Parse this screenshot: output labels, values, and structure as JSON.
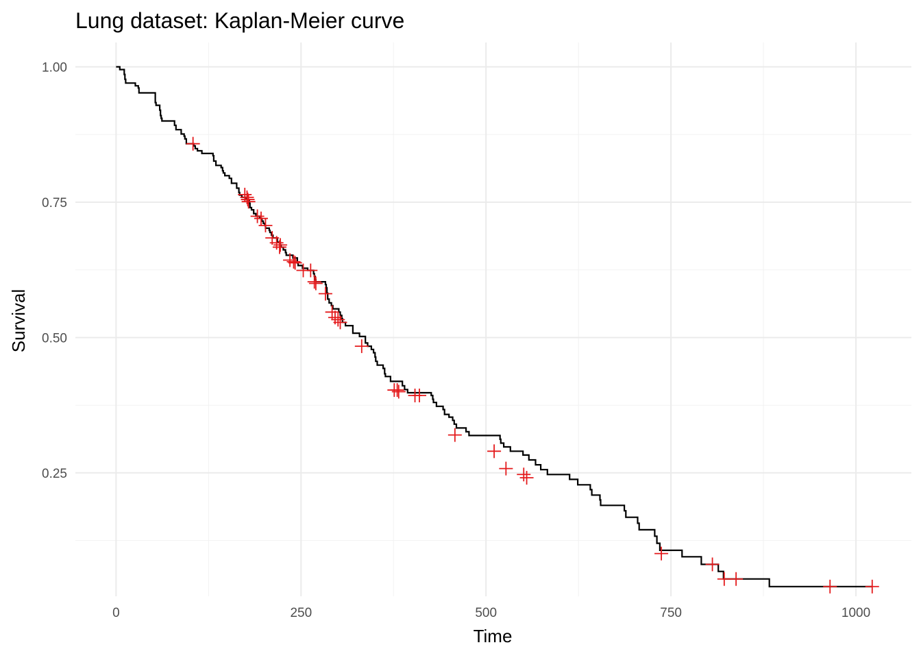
{
  "chart_data": {
    "type": "line",
    "title": "Lung dataset: Kaplan-Meier curve",
    "xlabel": "Time",
    "ylabel": "Survival",
    "xlim": [
      -55,
      1075
    ],
    "ylim": [
      0.022,
      1.045
    ],
    "x_ticks": [
      0,
      250,
      500,
      750,
      1000
    ],
    "x_tick_labels": [
      "0",
      "250",
      "500",
      "750",
      "1000"
    ],
    "y_ticks": [
      0.25,
      0.5,
      0.75,
      1.0
    ],
    "y_tick_labels": [
      "0.25",
      "0.50",
      "0.75",
      "1.00"
    ],
    "grid": true,
    "legend": "none",
    "colors": {
      "curve": "#000000",
      "censor": "#e41a1c"
    },
    "curve": [
      [
        0,
        1.0
      ],
      [
        5,
        0.995
      ],
      [
        11,
        0.986
      ],
      [
        12,
        0.977
      ],
      [
        13,
        0.97
      ],
      [
        26,
        0.965
      ],
      [
        30,
        0.961
      ],
      [
        31,
        0.952
      ],
      [
        53,
        0.934
      ],
      [
        54,
        0.929
      ],
      [
        59,
        0.92
      ],
      [
        60,
        0.91
      ],
      [
        61,
        0.905
      ],
      [
        62,
        0.9
      ],
      [
        79,
        0.892
      ],
      [
        81,
        0.884
      ],
      [
        88,
        0.876
      ],
      [
        92,
        0.872
      ],
      [
        93,
        0.867
      ],
      [
        95,
        0.858
      ],
      [
        105,
        0.854
      ],
      [
        107,
        0.849
      ],
      [
        110,
        0.845
      ],
      [
        116,
        0.84
      ],
      [
        118,
        0.84
      ],
      [
        131,
        0.836
      ],
      [
        132,
        0.826
      ],
      [
        135,
        0.818
      ],
      [
        142,
        0.814
      ],
      [
        144,
        0.808
      ],
      [
        145,
        0.804
      ],
      [
        147,
        0.799
      ],
      [
        153,
        0.794
      ],
      [
        156,
        0.785
      ],
      [
        163,
        0.776
      ],
      [
        166,
        0.768
      ],
      [
        167,
        0.763
      ],
      [
        170,
        0.759
      ],
      [
        176,
        0.755
      ],
      [
        180,
        0.748
      ],
      [
        181,
        0.74
      ],
      [
        183,
        0.736
      ],
      [
        186,
        0.729
      ],
      [
        189,
        0.724
      ],
      [
        194,
        0.72
      ],
      [
        197,
        0.715
      ],
      [
        199,
        0.711
      ],
      [
        201,
        0.707
      ],
      [
        202,
        0.702
      ],
      [
        207,
        0.698
      ],
      [
        208,
        0.694
      ],
      [
        210,
        0.689
      ],
      [
        212,
        0.684
      ],
      [
        218,
        0.676
      ],
      [
        222,
        0.671
      ],
      [
        223,
        0.667
      ],
      [
        226,
        0.662
      ],
      [
        229,
        0.657
      ],
      [
        230,
        0.652
      ],
      [
        239,
        0.647
      ],
      [
        245,
        0.638
      ],
      [
        246,
        0.633
      ],
      [
        252,
        0.628
      ],
      [
        259,
        0.624
      ],
      [
        267,
        0.618
      ],
      [
        268,
        0.613
      ],
      [
        269,
        0.607
      ],
      [
        270,
        0.603
      ],
      [
        283,
        0.598
      ],
      [
        284,
        0.592
      ],
      [
        285,
        0.582
      ],
      [
        286,
        0.571
      ],
      [
        288,
        0.564
      ],
      [
        291,
        0.559
      ],
      [
        293,
        0.553
      ],
      [
        301,
        0.547
      ],
      [
        303,
        0.541
      ],
      [
        305,
        0.535
      ],
      [
        306,
        0.528
      ],
      [
        310,
        0.522
      ],
      [
        320,
        0.508
      ],
      [
        329,
        0.502
      ],
      [
        337,
        0.49
      ],
      [
        340,
        0.484
      ],
      [
        345,
        0.478
      ],
      [
        348,
        0.472
      ],
      [
        350,
        0.464
      ],
      [
        351,
        0.456
      ],
      [
        353,
        0.449
      ],
      [
        361,
        0.443
      ],
      [
        363,
        0.433
      ],
      [
        364,
        0.428
      ],
      [
        371,
        0.419
      ],
      [
        387,
        0.411
      ],
      [
        390,
        0.404
      ],
      [
        394,
        0.398
      ],
      [
        426,
        0.393
      ],
      [
        428,
        0.386
      ],
      [
        429,
        0.38
      ],
      [
        433,
        0.373
      ],
      [
        442,
        0.367
      ],
      [
        444,
        0.358
      ],
      [
        450,
        0.353
      ],
      [
        455,
        0.347
      ],
      [
        457,
        0.34
      ],
      [
        460,
        0.333
      ],
      [
        473,
        0.326
      ],
      [
        477,
        0.319
      ],
      [
        519,
        0.312
      ],
      [
        520,
        0.305
      ],
      [
        524,
        0.298
      ],
      [
        533,
        0.29
      ],
      [
        550,
        0.283
      ],
      [
        558,
        0.274
      ],
      [
        567,
        0.265
      ],
      [
        574,
        0.256
      ],
      [
        583,
        0.247
      ],
      [
        613,
        0.238
      ],
      [
        624,
        0.228
      ],
      [
        641,
        0.219
      ],
      [
        643,
        0.209
      ],
      [
        654,
        0.2
      ],
      [
        655,
        0.19
      ],
      [
        687,
        0.18
      ],
      [
        689,
        0.168
      ],
      [
        705,
        0.157
      ],
      [
        707,
        0.145
      ],
      [
        728,
        0.133
      ],
      [
        731,
        0.12
      ],
      [
        735,
        0.107
      ],
      [
        765,
        0.095
      ],
      [
        791,
        0.081
      ],
      [
        814,
        0.068
      ],
      [
        821,
        0.054
      ],
      [
        883,
        0.04
      ],
      [
        1022,
        0.04
      ]
    ],
    "censored": [
      [
        104,
        0.858
      ],
      [
        174,
        0.764
      ],
      [
        177,
        0.759
      ],
      [
        178,
        0.755
      ],
      [
        179,
        0.751
      ],
      [
        191,
        0.724
      ],
      [
        196,
        0.72
      ],
      [
        202,
        0.707
      ],
      [
        211,
        0.684
      ],
      [
        217,
        0.675
      ],
      [
        221,
        0.667
      ],
      [
        222,
        0.671
      ],
      [
        235,
        0.643
      ],
      [
        240,
        0.64
      ],
      [
        242,
        0.638
      ],
      [
        253,
        0.624
      ],
      [
        263,
        0.624
      ],
      [
        268,
        0.603
      ],
      [
        270,
        0.6
      ],
      [
        283,
        0.581
      ],
      [
        292,
        0.547
      ],
      [
        296,
        0.537
      ],
      [
        300,
        0.533
      ],
      [
        303,
        0.528
      ],
      [
        332,
        0.484
      ],
      [
        376,
        0.403
      ],
      [
        380,
        0.403
      ],
      [
        382,
        0.4
      ],
      [
        404,
        0.393
      ],
      [
        410,
        0.393
      ],
      [
        458,
        0.32
      ],
      [
        511,
        0.29
      ],
      [
        527,
        0.258
      ],
      [
        551,
        0.247
      ],
      [
        555,
        0.241
      ],
      [
        737,
        0.101
      ],
      [
        806,
        0.081
      ],
      [
        822,
        0.054
      ],
      [
        838,
        0.054
      ],
      [
        965,
        0.04
      ],
      [
        1022,
        0.04
      ]
    ]
  }
}
